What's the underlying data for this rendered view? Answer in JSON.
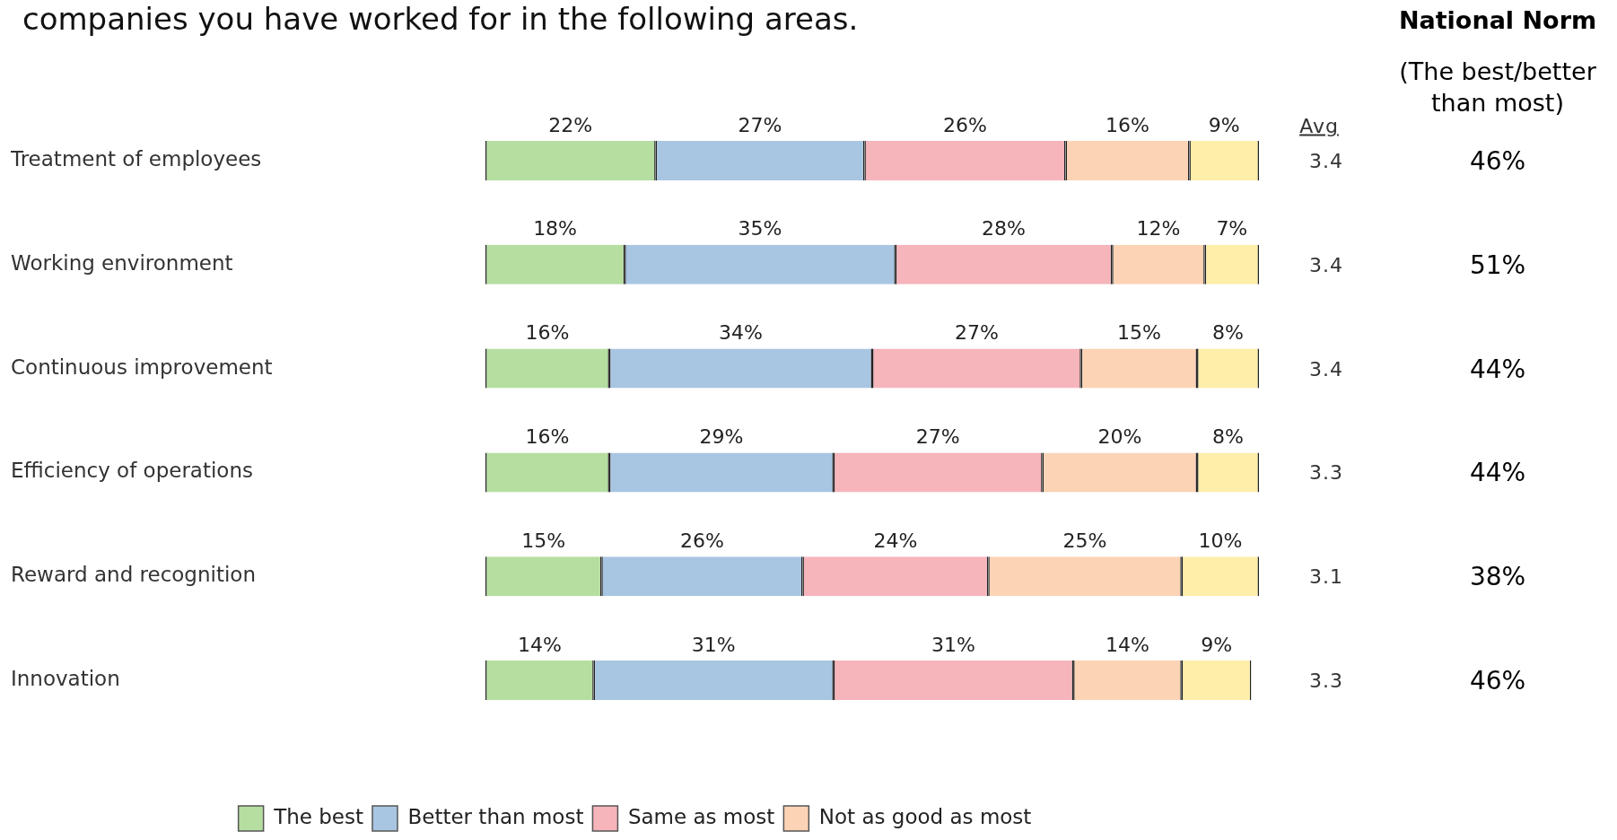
{
  "chart_data": [
    {
      "type": "bar",
      "title": "companies you have worked for in the following areas.",
      "orientation": "horizontal",
      "stacked": true,
      "categories": [
        "Treatment of employees",
        "Working environment",
        "Continuous improvement",
        "Efficiency of operations",
        "Reward and recognition",
        "Innovation"
      ],
      "series": [
        {
          "name": "The best",
          "color": "#b5dea0",
          "values": [
            22,
            18,
            16,
            16,
            15,
            14
          ],
          "value_labels": [
            "22%",
            "18%",
            "16%",
            "16%",
            "15%",
            "14%"
          ]
        },
        {
          "name": "Better than most",
          "color": "#a8c6e2",
          "values": [
            27,
            35,
            34,
            29,
            26,
            31
          ],
          "value_labels": [
            "27%",
            "35%",
            "34%",
            "29%",
            "26%",
            "31%"
          ]
        },
        {
          "name": "Same as most",
          "color": "#f6b4bb",
          "values": [
            26,
            28,
            27,
            27,
            24,
            31
          ],
          "value_labels": [
            "26%",
            "28%",
            "27%",
            "27%",
            "24%",
            "31%"
          ]
        },
        {
          "name": "Not as good as most",
          "color": "#fcd3b5",
          "values": [
            16,
            12,
            15,
            20,
            25,
            14
          ],
          "value_labels": [
            "16%",
            "12%",
            "15%",
            "20%",
            "25%",
            "14%"
          ]
        },
        {
          "color": "#fdeeaa",
          "values": [
            9,
            7,
            8,
            8,
            10,
            9
          ],
          "value_labels": [
            "9%",
            "7%",
            "8%",
            "8%",
            "10%",
            "9%"
          ]
        }
      ],
      "xlim": [
        0,
        100
      ],
      "tick_labels": "y",
      "legend": "bottom"
    },
    {
      "type": "other",
      "title": "Avg",
      "annotations": [
        "3.4",
        "3.4",
        "3.4",
        "3.3",
        "3.1",
        "3.3"
      ]
    },
    {
      "type": "other",
      "title": "National Norm",
      "subtitle": "(The best/better than most)",
      "annotations": [
        "46%",
        "51%",
        "44%",
        "44%",
        "38%",
        "46%"
      ]
    }
  ]
}
